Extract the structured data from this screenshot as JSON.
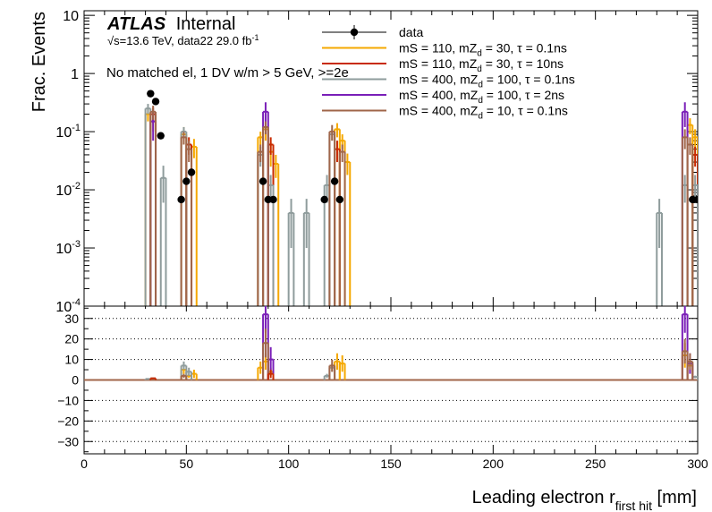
{
  "chart_data": {
    "type": "histogram",
    "header": {
      "experiment": "ATLAS",
      "status": "Internal",
      "sqrt_s_label": "√s",
      "energy_line": "=13.6 TeV, data22 29.0 fb",
      "lumi_exponent": "-1",
      "selection": "No matched el, 1 DV w/m > 5 GeV, >=2e"
    },
    "xlabel_main": "Leading electron r",
    "xlabel_sub": "first hit",
    "xlabel_unit": " [mm]",
    "ylabel": "Frac. Events",
    "xlim": [
      0,
      300
    ],
    "xticks": [
      0,
      50,
      100,
      150,
      200,
      250,
      300
    ],
    "top_panel": {
      "scale": "log",
      "ylim": [
        0.0001,
        12
      ],
      "yticks": [
        {
          "v": 10,
          "label": "10"
        },
        {
          "v": 1,
          "label": "1"
        },
        {
          "v": 0.1,
          "base": "10",
          "exp": "-1"
        },
        {
          "v": 0.01,
          "base": "10",
          "exp": "-2"
        },
        {
          "v": 0.001,
          "base": "10",
          "exp": "-3"
        },
        {
          "v": 0.0001,
          "base": "10",
          "exp": "-4"
        }
      ]
    },
    "ratio_panel": {
      "ylim": [
        -36,
        36
      ],
      "yticks": [
        30,
        20,
        10,
        0,
        -10,
        -20,
        -30
      ],
      "grid": "dotted"
    },
    "legend": [
      {
        "label": "data",
        "color": "#000000",
        "kind": "marker"
      },
      {
        "label": "mS = 110, mZ",
        "sub": "d",
        "rest": " = 30, τ = 0.1ns",
        "color": "#f5a800",
        "kind": "line"
      },
      {
        "label": "mS = 110, mZ",
        "sub": "d",
        "rest": " = 30, τ = 10ns",
        "color": "#c82a00",
        "kind": "line"
      },
      {
        "label": "mS = 400, mZ",
        "sub": "d",
        "rest": " = 100, τ = 0.1ns",
        "color": "#8f9c9c",
        "kind": "line"
      },
      {
        "label": "mS = 400, mZ",
        "sub": "d",
        "rest": " = 100, τ = 2ns",
        "color": "#7a1fb8",
        "kind": "line"
      },
      {
        "label": "mS = 400, mZ",
        "sub": "d",
        "rest": " = 10, τ = 0.1ns",
        "color": "#a0664a",
        "kind": "line"
      }
    ],
    "data": [
      {
        "x": 32.5,
        "y": 0.45
      },
      {
        "x": 35.0,
        "y": 0.33
      },
      {
        "x": 37.5,
        "y": 0.085
      },
      {
        "x": 47.5,
        "y": 0.0068
      },
      {
        "x": 50.0,
        "y": 0.014
      },
      {
        "x": 52.5,
        "y": 0.02
      },
      {
        "x": 87.5,
        "y": 0.014
      },
      {
        "x": 90.0,
        "y": 0.0068
      },
      {
        "x": 92.5,
        "y": 0.0068
      },
      {
        "x": 117.5,
        "y": 0.0068
      },
      {
        "x": 122.5,
        "y": 0.014
      },
      {
        "x": 125.0,
        "y": 0.0068
      },
      {
        "x": 297.5,
        "y": 0.0068
      },
      {
        "x": 300.0,
        "y": 0.0068
      }
    ],
    "series": [
      {
        "name": "mS = 110, mZd = 30, τ = 0.1ns",
        "color": "#f5a800",
        "bins": [
          [
            30,
            32.5,
            0.2,
            0.05
          ],
          [
            32.5,
            35,
            0.15,
            0.05
          ],
          [
            47.5,
            50,
            0.09,
            0.03
          ],
          [
            52.5,
            55,
            0.055,
            0.02
          ],
          [
            85,
            87.5,
            0.08,
            0.02
          ],
          [
            87.5,
            90,
            0.11,
            0.04
          ],
          [
            90,
            92.5,
            0.045,
            0.02
          ],
          [
            92.5,
            95,
            0.028,
            0.012
          ],
          [
            122.5,
            125,
            0.11,
            0.03
          ],
          [
            125,
            127.5,
            0.07,
            0.02
          ],
          [
            127.5,
            130,
            0.03,
            0.012
          ],
          [
            295,
            297.5,
            0.13,
            0.04
          ],
          [
            297.5,
            300,
            0.08,
            0.03
          ]
        ]
      },
      {
        "name": "mS = 110, mZd = 30, τ = 10ns",
        "color": "#c82a00",
        "bins": [
          [
            32.5,
            35,
            0.2,
            0.06
          ],
          [
            50,
            52.5,
            0.06,
            0.02
          ],
          [
            90,
            92.5,
            0.06,
            0.02
          ],
          [
            122.5,
            125,
            0.05,
            0.02
          ],
          [
            297.5,
            300,
            0.04,
            0.015
          ]
        ]
      },
      {
        "name": "mS = 400, mZd = 100, τ = 0.1ns",
        "color": "#8f9c9c",
        "bins": [
          [
            30,
            32.5,
            0.25,
            0.05
          ],
          [
            37.5,
            40,
            0.016,
            0.01
          ],
          [
            47.5,
            50,
            0.1,
            0.02
          ],
          [
            85,
            87.5,
            0.04,
            0.015
          ],
          [
            90,
            92.5,
            0.012,
            0.006
          ],
          [
            100,
            102.5,
            0.004,
            0.003
          ],
          [
            107.5,
            110,
            0.004,
            0.003
          ],
          [
            117.5,
            120,
            0.012,
            0.006
          ],
          [
            120,
            122.5,
            0.09,
            0.02
          ],
          [
            280,
            282.5,
            0.004,
            0.003
          ],
          [
            292.5,
            295,
            0.012,
            0.006
          ],
          [
            297.5,
            300,
            0.012,
            0.006
          ]
        ]
      },
      {
        "name": "mS = 400, mZd = 100, τ = 2ns",
        "color": "#7a1fb8",
        "bins": [
          [
            32.5,
            35,
            0.15,
            0.08
          ],
          [
            87.5,
            90,
            0.22,
            0.1
          ],
          [
            292.5,
            295,
            0.22,
            0.1
          ]
        ]
      },
      {
        "name": "mS = 400, mZd = 10, τ = 0.1ns",
        "color": "#a0664a",
        "bins": [
          [
            32.5,
            35,
            0.22,
            0.06
          ],
          [
            47.5,
            50,
            0.08,
            0.02
          ],
          [
            50,
            52.5,
            0.05,
            0.02
          ],
          [
            85,
            87.5,
            0.045,
            0.015
          ],
          [
            87.5,
            90,
            0.12,
            0.03
          ],
          [
            120,
            122.5,
            0.1,
            0.03
          ],
          [
            125,
            127.5,
            0.045,
            0.015
          ],
          [
            292.5,
            295,
            0.08,
            0.03
          ],
          [
            295,
            297.5,
            0.06,
            0.02
          ]
        ]
      }
    ],
    "ratio": [
      {
        "color": "#f5a800",
        "bins": [
          [
            47.5,
            50,
            5,
            2
          ],
          [
            50,
            52.5,
            2,
            1
          ],
          [
            52.5,
            55,
            3,
            2
          ],
          [
            85,
            87.5,
            6,
            3
          ],
          [
            87.5,
            90,
            9,
            4
          ],
          [
            90,
            92.5,
            4,
            2
          ],
          [
            122.5,
            125,
            9,
            4
          ],
          [
            125,
            127.5,
            8,
            4
          ],
          [
            292.5,
            295,
            12,
            6
          ],
          [
            295,
            297.5,
            7,
            3
          ]
        ]
      },
      {
        "color": "#8f9c9c",
        "bins": [
          [
            30,
            32.5,
            0.5,
            0.3
          ],
          [
            32.5,
            35,
            0.8,
            0.3
          ],
          [
            47.5,
            50,
            7,
            2
          ],
          [
            50,
            52.5,
            4,
            2
          ],
          [
            117.5,
            120,
            2,
            1
          ],
          [
            120,
            122.5,
            6,
            2
          ],
          [
            297.5,
            300,
            1.5,
            0.6
          ]
        ]
      },
      {
        "color": "#7a1fb8",
        "bins": [
          [
            87.5,
            90,
            32,
            9
          ],
          [
            90,
            92.5,
            10,
            6
          ],
          [
            292.5,
            295,
            32,
            9
          ],
          [
            295,
            297.5,
            8,
            5
          ]
        ]
      },
      {
        "color": "#a0664a",
        "bins": [
          [
            47.5,
            50,
            2,
            1
          ],
          [
            87.5,
            90,
            18,
            7
          ],
          [
            120,
            122.5,
            7,
            3
          ],
          [
            292.5,
            295,
            14,
            6
          ],
          [
            295,
            297.5,
            9,
            4
          ]
        ]
      },
      {
        "color": "#c82a00",
        "bins": [
          [
            32.5,
            35,
            0.8,
            0.3
          ],
          [
            90,
            92.5,
            3,
            2
          ]
        ]
      }
    ]
  }
}
